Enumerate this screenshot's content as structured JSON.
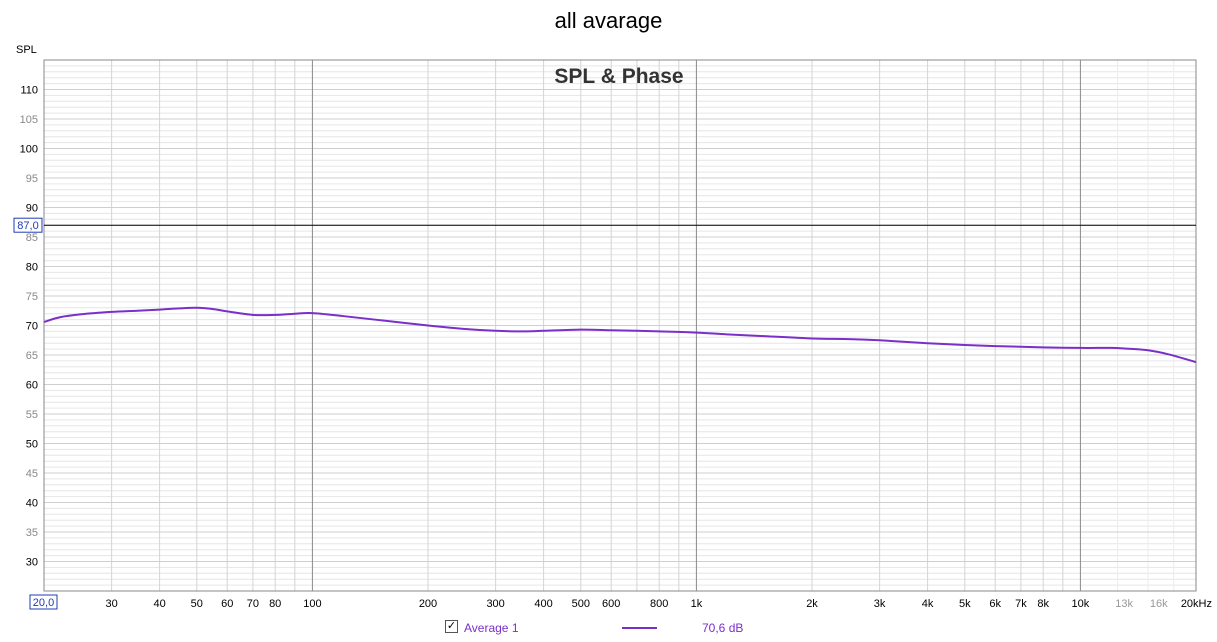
{
  "title": "all avarage",
  "chart_data": {
    "type": "line",
    "title": "SPL & Phase",
    "ylabel": "SPL",
    "xlabel": "",
    "x_scale": "log",
    "xlim": [
      20,
      20000
    ],
    "ylim": [
      25,
      115
    ],
    "grid": true,
    "y_ticks": [
      30,
      35,
      40,
      45,
      50,
      55,
      60,
      65,
      70,
      75,
      80,
      85,
      90,
      95,
      100,
      105,
      110
    ],
    "y_ticks_bold": [
      30,
      40,
      50,
      60,
      70,
      80,
      90,
      100,
      110
    ],
    "x_ticks": [
      {
        "value": 20,
        "label": "20,0",
        "boxed": true
      },
      {
        "value": 30,
        "label": "30"
      },
      {
        "value": 40,
        "label": "40"
      },
      {
        "value": 50,
        "label": "50"
      },
      {
        "value": 60,
        "label": "60"
      },
      {
        "value": 70,
        "label": "70"
      },
      {
        "value": 80,
        "label": "80"
      },
      {
        "value": 100,
        "label": "100"
      },
      {
        "value": 200,
        "label": "200"
      },
      {
        "value": 300,
        "label": "300"
      },
      {
        "value": 400,
        "label": "400"
      },
      {
        "value": 500,
        "label": "500"
      },
      {
        "value": 600,
        "label": "600"
      },
      {
        "value": 800,
        "label": "800"
      },
      {
        "value": 1000,
        "label": "1k"
      },
      {
        "value": 2000,
        "label": "2k"
      },
      {
        "value": 3000,
        "label": "3k"
      },
      {
        "value": 4000,
        "label": "4k"
      },
      {
        "value": 5000,
        "label": "5k"
      },
      {
        "value": 6000,
        "label": "6k"
      },
      {
        "value": 7000,
        "label": "7k"
      },
      {
        "value": 8000,
        "label": "8k"
      },
      {
        "value": 10000,
        "label": "10k"
      },
      {
        "value": 13000,
        "label": "13k",
        "faded": true
      },
      {
        "value": 16000,
        "label": "16k",
        "faded": true
      },
      {
        "value": 20000,
        "label": "20kHz"
      }
    ],
    "cursor": {
      "y": 87.0,
      "label": "87,0"
    },
    "series": [
      {
        "name": "Average 1",
        "color": "#7b2fc9",
        "x": [
          20,
          22,
          25,
          30,
          35,
          40,
          45,
          50,
          55,
          60,
          70,
          80,
          90,
          100,
          120,
          150,
          200,
          250,
          300,
          350,
          400,
          500,
          600,
          700,
          800,
          1000,
          1200,
          1500,
          2000,
          2500,
          3000,
          4000,
          5000,
          6000,
          7000,
          8000,
          10000,
          12000,
          13000,
          15000,
          17000,
          20000
        ],
        "y": [
          70.6,
          71.4,
          71.9,
          72.3,
          72.5,
          72.7,
          72.9,
          73.0,
          72.8,
          72.4,
          71.8,
          71.8,
          72.0,
          72.1,
          71.6,
          70.9,
          70.0,
          69.4,
          69.1,
          69.0,
          69.1,
          69.3,
          69.2,
          69.1,
          69.0,
          68.8,
          68.5,
          68.2,
          67.8,
          67.7,
          67.5,
          67.0,
          66.7,
          66.5,
          66.4,
          66.3,
          66.2,
          66.2,
          66.1,
          65.8,
          65.1,
          63.8
        ]
      }
    ]
  },
  "legend": {
    "check": "✓",
    "name": "Average 1",
    "value": "70,6 dB"
  }
}
